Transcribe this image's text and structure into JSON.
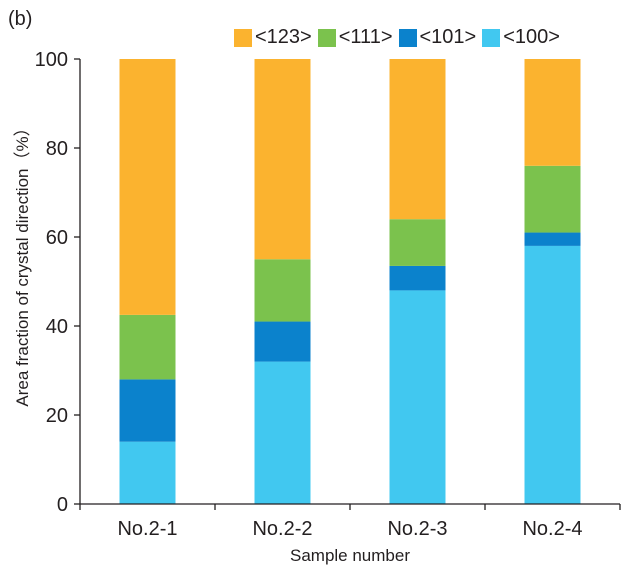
{
  "panel_label": "(b)",
  "chart_data": {
    "type": "bar",
    "stacked": true,
    "title": "",
    "xlabel": "Sample number",
    "ylabel": "Area fraction of crystal direction（%）",
    "ylim": [
      0,
      100
    ],
    "yticks": [
      0,
      20,
      40,
      60,
      80,
      100
    ],
    "categories": [
      "No.2-1",
      "No.2-2",
      "No.2-3",
      "No.2-4"
    ],
    "series": [
      {
        "name": "<100>",
        "color": "#41c8f0",
        "values": [
          14,
          32,
          48,
          58
        ]
      },
      {
        "name": "<101>",
        "color": "#0b82cc",
        "values": [
          14,
          9,
          5.5,
          3
        ]
      },
      {
        "name": "<111>",
        "color": "#7bc24d",
        "values": [
          14.5,
          14,
          10.5,
          15
        ]
      },
      {
        "name": "<123>",
        "color": "#fbb32f",
        "values": [
          57.5,
          45,
          36,
          24
        ]
      }
    ],
    "legend_order": [
      "<123>",
      "<111>",
      "<101>",
      "<100>"
    ],
    "legend_position": "top"
  }
}
